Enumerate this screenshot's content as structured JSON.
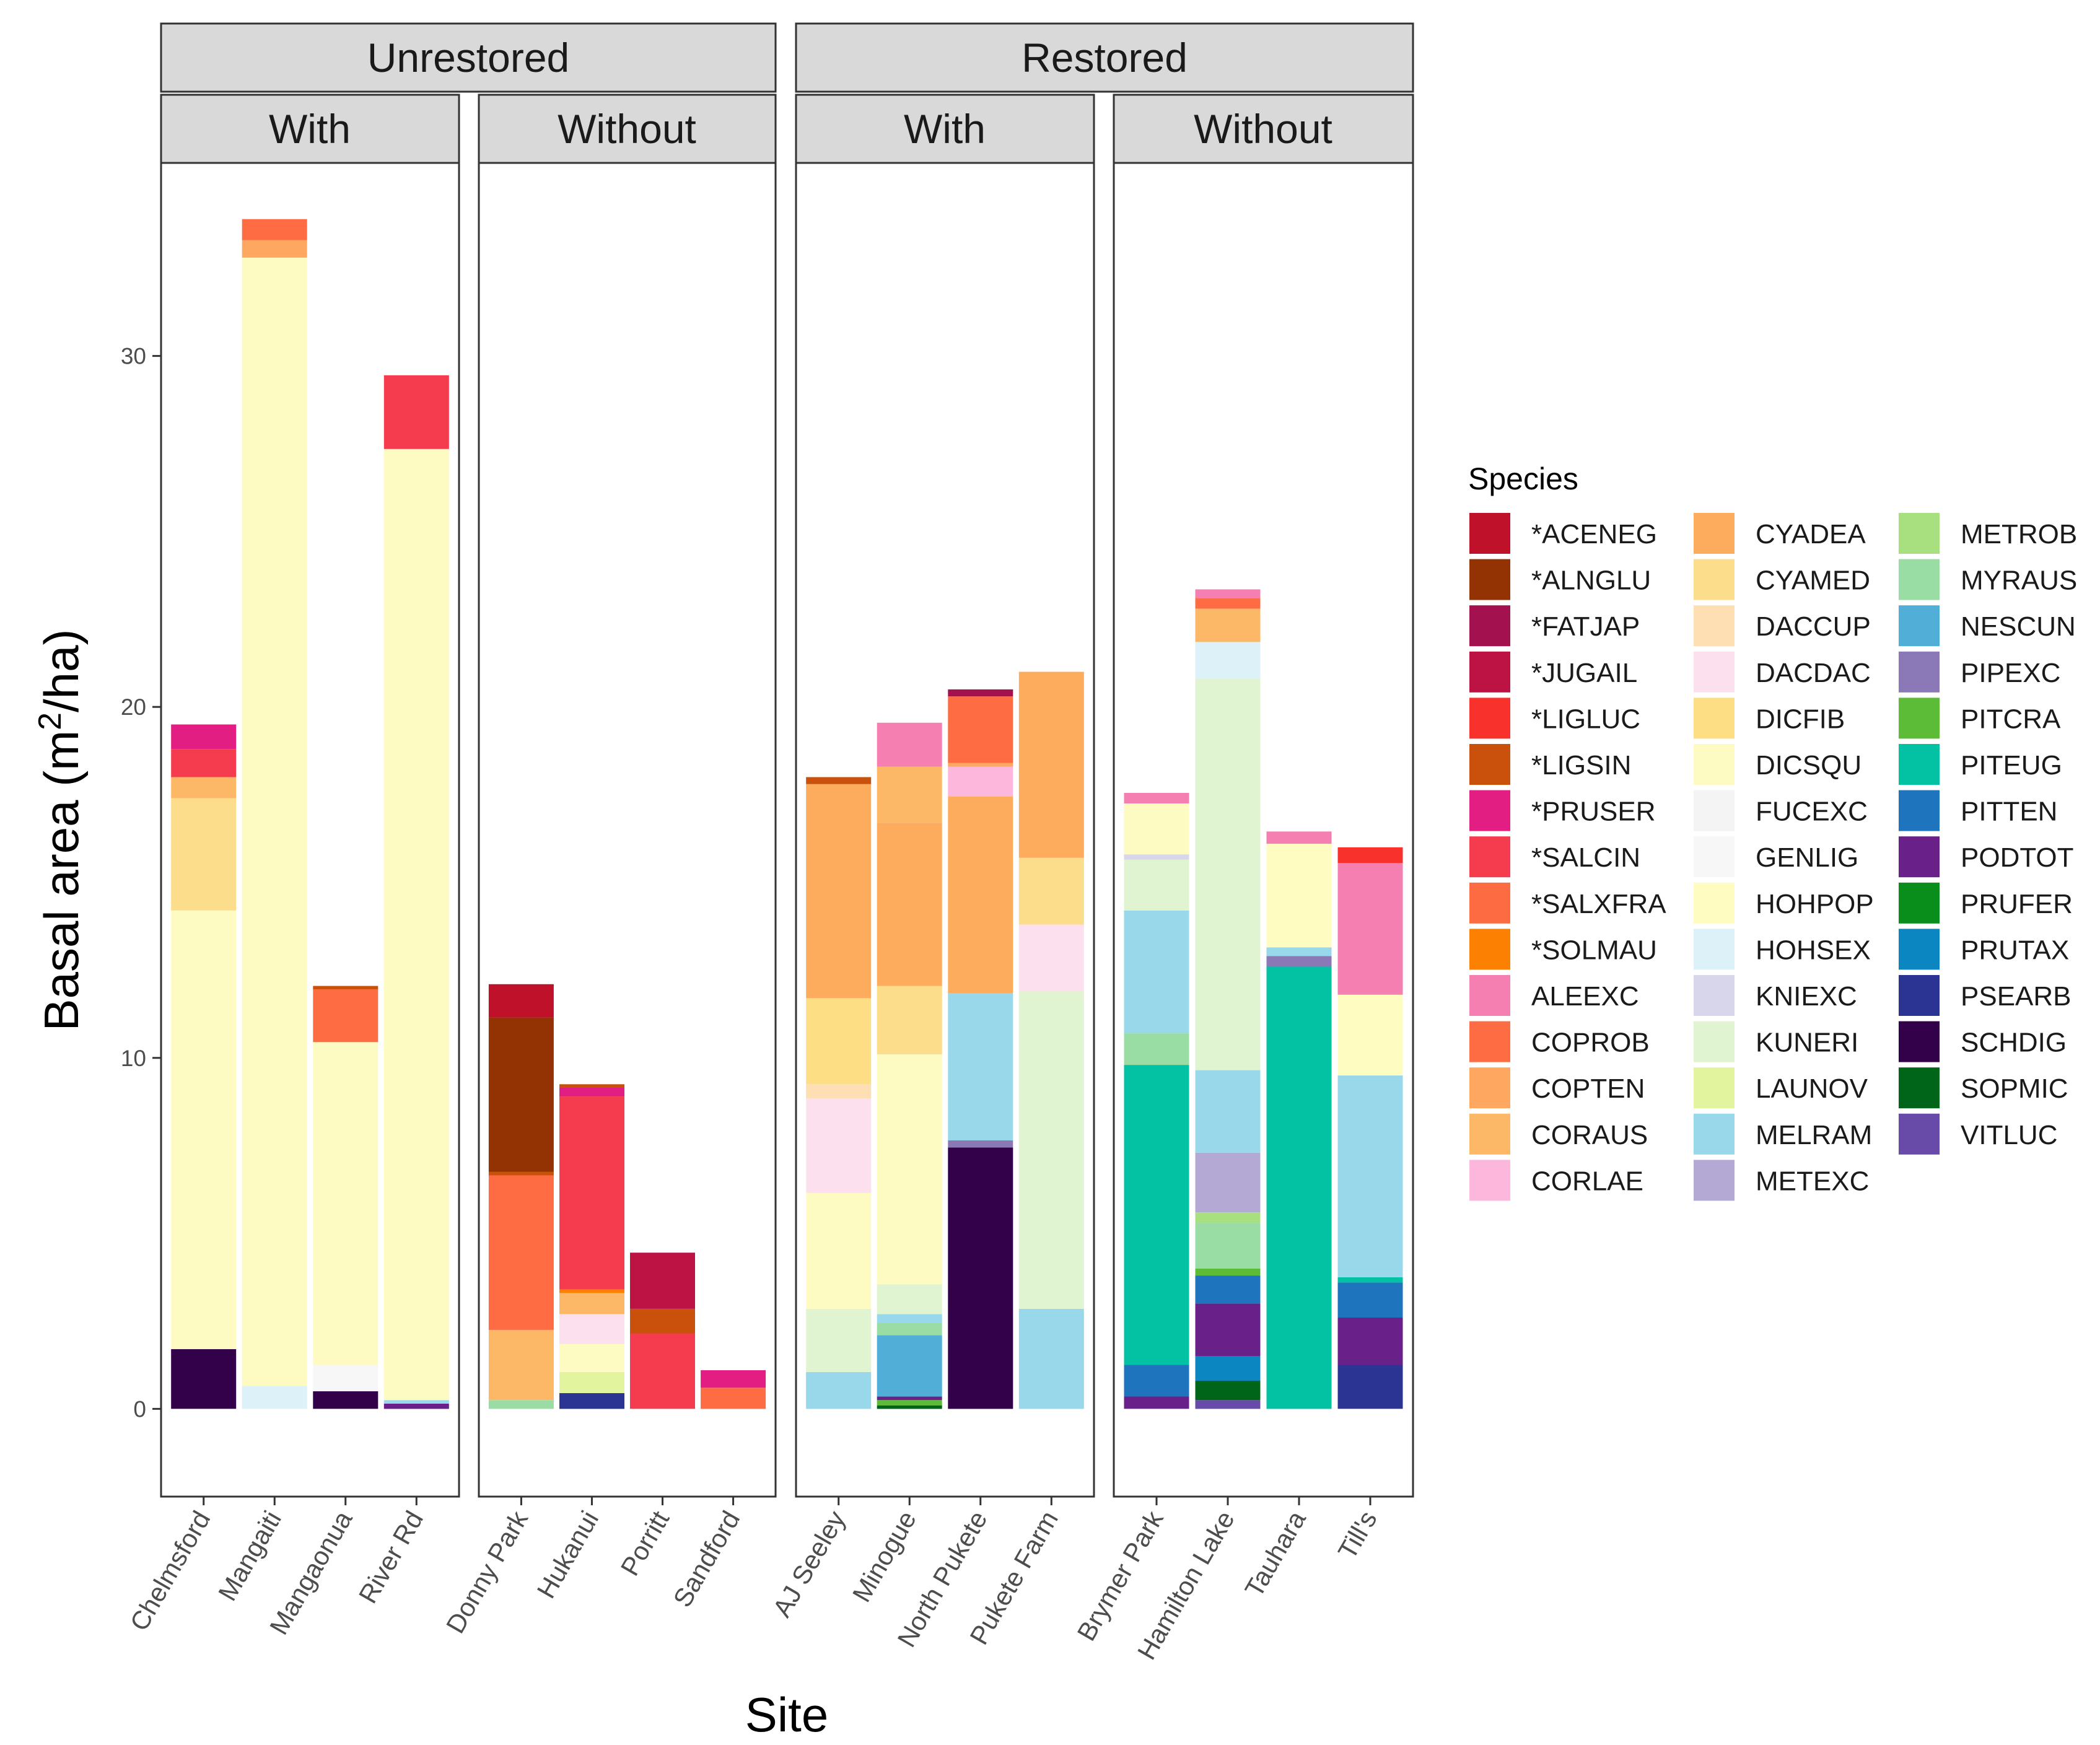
{
  "chart_data": {
    "type": "bar",
    "stacked": true,
    "xlabel": "Site",
    "ylabel_prefix": "Basal area (m",
    "ylabel_superscript": "2",
    "ylabel_suffix": "/ha)",
    "ylim": [
      -2.5,
      35.5
    ],
    "yticks": [
      0,
      10,
      20,
      30
    ],
    "legend_title": "Species",
    "legend_position": "right",
    "facet_top": [
      "Unrestored",
      "Restored"
    ],
    "species": [
      {
        "code": "*ACENEG",
        "color": "#C0112A"
      },
      {
        "code": "*ALNGLU",
        "color": "#933203"
      },
      {
        "code": "*FATJAP",
        "color": "#A3114F"
      },
      {
        "code": "*JUGAIL",
        "color": "#BC1244"
      },
      {
        "code": "*LIGLUC",
        "color": "#F8312C"
      },
      {
        "code": "*LIGSIN",
        "color": "#C9510C"
      },
      {
        "code": "*PRUSER",
        "color": "#E21E82"
      },
      {
        "code": "*SALCIN",
        "color": "#F43C4E"
      },
      {
        "code": "*SALXFRA",
        "color": "#FD6B43"
      },
      {
        "code": "*SOLMAU",
        "color": "#FC8002"
      },
      {
        "code": "ALEEXC",
        "color": "#F67FB2"
      },
      {
        "code": "COPROB",
        "color": "#FE6C44"
      },
      {
        "code": "COPTEN",
        "color": "#FDA760"
      },
      {
        "code": "CORAUS",
        "color": "#FDB867"
      },
      {
        "code": "CORLAE",
        "color": "#FDB7DC"
      },
      {
        "code": "CYADEA",
        "color": "#FDAB5D"
      },
      {
        "code": "CYAMED",
        "color": "#FCDD8C"
      },
      {
        "code": "DACCUP",
        "color": "#FDDFB3"
      },
      {
        "code": "DACDAC",
        "color": "#FDE0EE"
      },
      {
        "code": "DICFIB",
        "color": "#FDDE84"
      },
      {
        "code": "DICSQU",
        "color": "#FEFBC2"
      },
      {
        "code": "FUCEXC",
        "color": "#F4F4F4"
      },
      {
        "code": "GENLIG",
        "color": "#F7F7F7"
      },
      {
        "code": "HOHPOP",
        "color": "#FEFCC0"
      },
      {
        "code": "HOHSEX",
        "color": "#DDF1F8"
      },
      {
        "code": "KNIEXC",
        "color": "#D7D6EA"
      },
      {
        "code": "KUNERI",
        "color": "#E1F4D1"
      },
      {
        "code": "LAUNOV",
        "color": "#E2F49E"
      },
      {
        "code": "MELRAM",
        "color": "#99D8EA"
      },
      {
        "code": "METEXC",
        "color": "#B4A9D4"
      },
      {
        "code": "METROB",
        "color": "#A8E07F"
      },
      {
        "code": "MYRAUS",
        "color": "#99DDA5"
      },
      {
        "code": "NESCUN",
        "color": "#51AED6"
      },
      {
        "code": "PIPEXC",
        "color": "#8B78B7"
      },
      {
        "code": "PITCRA",
        "color": "#5CBC37"
      },
      {
        "code": "PITEUG",
        "color": "#02C2A3"
      },
      {
        "code": "PITTEN",
        "color": "#1F75BD"
      },
      {
        "code": "PODTOT",
        "color": "#6A2089"
      },
      {
        "code": "PRUFER",
        "color": "#0A8E1B"
      },
      {
        "code": "PRUTAX",
        "color": "#0C86C0"
      },
      {
        "code": "PSEARB",
        "color": "#2B3393"
      },
      {
        "code": "SCHDIG",
        "color": "#33004A"
      },
      {
        "code": "SOPMIC",
        "color": "#006518"
      },
      {
        "code": "VITLUC",
        "color": "#684AA8"
      }
    ],
    "panels": [
      {
        "treatment": "Unrestored",
        "group": "With",
        "sites": [
          {
            "name": "Chelmsford",
            "segments": [
              {
                "sp": "SCHDIG",
                "v": 1.7
              },
              {
                "sp": "DICSQU",
                "v": 12.5
              },
              {
                "sp": "CYAMED",
                "v": 3.2
              },
              {
                "sp": "CORAUS",
                "v": 0.6
              },
              {
                "sp": "*SALCIN",
                "v": 0.8
              },
              {
                "sp": "*PRUSER",
                "v": 0.7
              }
            ]
          },
          {
            "name": "Mangaiti",
            "segments": [
              {
                "sp": "HOHSEX",
                "v": 0.65
              },
              {
                "sp": "DICSQU",
                "v": 32.15
              },
              {
                "sp": "COPTEN",
                "v": 0.5
              },
              {
                "sp": "COPROB",
                "v": 0.6
              }
            ]
          },
          {
            "name": "Mangaonua",
            "segments": [
              {
                "sp": "SCHDIG",
                "v": 0.5
              },
              {
                "sp": "GENLIG",
                "v": 0.75
              },
              {
                "sp": "DICSQU",
                "v": 9.2
              },
              {
                "sp": "COPROB",
                "v": 1.5
              },
              {
                "sp": "*LIGSIN",
                "v": 0.1
              }
            ]
          },
          {
            "name": "River Rd",
            "segments": [
              {
                "sp": "PODTOT",
                "v": 0.15
              },
              {
                "sp": "MELRAM",
                "v": 0.1
              },
              {
                "sp": "DICSQU",
                "v": 27.1
              },
              {
                "sp": "*SALCIN",
                "v": 2.1
              }
            ]
          }
        ]
      },
      {
        "treatment": "Unrestored",
        "group": "Without",
        "sites": [
          {
            "name": "Donny Park",
            "segments": [
              {
                "sp": "MYRAUS",
                "v": 0.25
              },
              {
                "sp": "CORAUS",
                "v": 2.0
              },
              {
                "sp": "COPROB",
                "v": 4.4
              },
              {
                "sp": "*LIGSIN",
                "v": 0.1
              },
              {
                "sp": "*ALNGLU",
                "v": 4.4
              },
              {
                "sp": "*ACENEG",
                "v": 0.95
              }
            ]
          },
          {
            "name": "Hukanui",
            "segments": [
              {
                "sp": "PSEARB",
                "v": 0.45
              },
              {
                "sp": "LAUNOV",
                "v": 0.6
              },
              {
                "sp": "DICSQU",
                "v": 0.8
              },
              {
                "sp": "DACDAC",
                "v": 0.85
              },
              {
                "sp": "CORAUS",
                "v": 0.6
              },
              {
                "sp": "*SOLMAU",
                "v": 0.1
              },
              {
                "sp": "*SALCIN",
                "v": 5.5
              },
              {
                "sp": "*PRUSER",
                "v": 0.25
              },
              {
                "sp": "*LIGSIN",
                "v": 0.1
              }
            ]
          },
          {
            "name": "Porritt",
            "segments": [
              {
                "sp": "*SALCIN",
                "v": 2.15
              },
              {
                "sp": "*LIGSIN",
                "v": 0.7
              },
              {
                "sp": "*JUGAIL",
                "v": 1.6
              }
            ]
          },
          {
            "name": "Sandford",
            "segments": [
              {
                "sp": "COPROB",
                "v": 0.6
              },
              {
                "sp": "*PRUSER",
                "v": 0.5
              }
            ]
          }
        ]
      },
      {
        "treatment": "Restored",
        "group": "With",
        "sites": [
          {
            "name": "AJ Seeley",
            "segments": [
              {
                "sp": "MELRAM",
                "v": 1.05
              },
              {
                "sp": "KUNERI",
                "v": 1.8
              },
              {
                "sp": "DICSQU",
                "v": 3.3
              },
              {
                "sp": "DACDAC",
                "v": 2.7
              },
              {
                "sp": "DACCUP",
                "v": 0.4
              },
              {
                "sp": "DICFIB",
                "v": 2.45
              },
              {
                "sp": "CYADEA",
                "v": 6.1
              },
              {
                "sp": "*LIGSIN",
                "v": 0.2
              }
            ]
          },
          {
            "name": "Minogue",
            "segments": [
              {
                "sp": "SOPMIC",
                "v": 0.1
              },
              {
                "sp": "PITCRA",
                "v": 0.15
              },
              {
                "sp": "PODTOT",
                "v": 0.1
              },
              {
                "sp": "NESCUN",
                "v": 1.75
              },
              {
                "sp": "MYRAUS",
                "v": 0.35
              },
              {
                "sp": "MELRAM",
                "v": 0.25
              },
              {
                "sp": "KUNERI",
                "v": 0.85
              },
              {
                "sp": "DICSQU",
                "v": 6.55
              },
              {
                "sp": "CYAMED",
                "v": 1.95
              },
              {
                "sp": "CYADEA",
                "v": 4.65
              },
              {
                "sp": "CORAUS",
                "v": 1.6
              },
              {
                "sp": "ALEEXC",
                "v": 1.25
              }
            ]
          },
          {
            "name": "North Pukete",
            "segments": [
              {
                "sp": "SCHDIG",
                "v": 7.45
              },
              {
                "sp": "PIPEXC",
                "v": 0.2
              },
              {
                "sp": "MELRAM",
                "v": 4.2
              },
              {
                "sp": "CYADEA",
                "v": 5.6
              },
              {
                "sp": "CORLAE",
                "v": 0.85
              },
              {
                "sp": "COPTEN",
                "v": 0.1
              },
              {
                "sp": "COPROB",
                "v": 1.9
              },
              {
                "sp": "*FATJAP",
                "v": 0.2
              }
            ]
          },
          {
            "name": "Pukete Farm",
            "segments": [
              {
                "sp": "MELRAM",
                "v": 2.85
              },
              {
                "sp": "KUNERI",
                "v": 9.05
              },
              {
                "sp": "DACDAC",
                "v": 1.9
              },
              {
                "sp": "CYAMED",
                "v": 1.9
              },
              {
                "sp": "CYADEA",
                "v": 5.3
              }
            ]
          }
        ]
      },
      {
        "treatment": "Restored",
        "group": "Without",
        "sites": [
          {
            "name": "Brymer Park",
            "segments": [
              {
                "sp": "PODTOT",
                "v": 0.35
              },
              {
                "sp": "PITTEN",
                "v": 0.9
              },
              {
                "sp": "PITEUG",
                "v": 8.55
              },
              {
                "sp": "MYRAUS",
                "v": 0.9
              },
              {
                "sp": "MELRAM",
                "v": 3.5
              },
              {
                "sp": "KUNERI",
                "v": 1.45
              },
              {
                "sp": "KNIEXC",
                "v": 0.15
              },
              {
                "sp": "DICSQU",
                "v": 1.45
              },
              {
                "sp": "ALEEXC",
                "v": 0.3
              }
            ]
          },
          {
            "name": "Hamilton Lake",
            "segments": [
              {
                "sp": "VITLUC",
                "v": 0.25
              },
              {
                "sp": "SOPMIC",
                "v": 0.55
              },
              {
                "sp": "PRUTAX",
                "v": 0.7
              },
              {
                "sp": "PODTOT",
                "v": 1.5
              },
              {
                "sp": "PITTEN",
                "v": 0.8
              },
              {
                "sp": "PITCRA",
                "v": 0.2
              },
              {
                "sp": "MYRAUS",
                "v": 1.3
              },
              {
                "sp": "METROB",
                "v": 0.3
              },
              {
                "sp": "METEXC",
                "v": 1.7
              },
              {
                "sp": "MELRAM",
                "v": 2.35
              },
              {
                "sp": "KUNERI",
                "v": 11.15
              },
              {
                "sp": "HOHSEX",
                "v": 1.05
              },
              {
                "sp": "CORAUS",
                "v": 0.95
              },
              {
                "sp": "COPROB",
                "v": 0.3
              },
              {
                "sp": "ALEEXC",
                "v": 0.25
              }
            ]
          },
          {
            "name": "Tauhara",
            "segments": [
              {
                "sp": "PITEUG",
                "v": 12.6
              },
              {
                "sp": "PIPEXC",
                "v": 0.3
              },
              {
                "sp": "MELRAM",
                "v": 0.25
              },
              {
                "sp": "HOHPOP",
                "v": 2.95
              },
              {
                "sp": "ALEEXC",
                "v": 0.35
              }
            ]
          },
          {
            "name": "Till's",
            "segments": [
              {
                "sp": "PSEARB",
                "v": 1.25
              },
              {
                "sp": "PODTOT",
                "v": 1.35
              },
              {
                "sp": "PITTEN",
                "v": 1.0
              },
              {
                "sp": "PITEUG",
                "v": 0.15
              },
              {
                "sp": "MELRAM",
                "v": 5.75
              },
              {
                "sp": "HOHPOP",
                "v": 2.3
              },
              {
                "sp": "ALEEXC",
                "v": 3.75
              },
              {
                "sp": "*LIGLUC",
                "v": 0.45
              }
            ]
          }
        ]
      }
    ]
  }
}
